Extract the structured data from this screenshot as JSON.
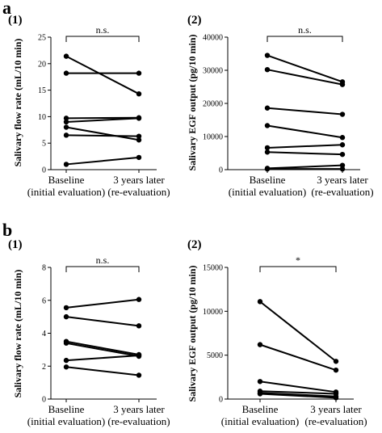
{
  "panels": [
    {
      "label": "a",
      "sub": "(1)",
      "sublabel": "(2)"
    },
    {
      "label": "b",
      "sub": "(1)",
      "sublabel": "(2)"
    }
  ],
  "chart_data": [
    {
      "id": "a1",
      "panel_label": "a",
      "sub_label": "(1)",
      "type": "line",
      "xlabel": "",
      "ylabel": "Salivary flow rate (mL/10 min)",
      "categories": [
        [
          "Baseline",
          "(initial evaluation)"
        ],
        [
          "3 years later",
          "(re-evaluation)"
        ]
      ],
      "ylim": [
        0,
        25
      ],
      "yticks": [
        0,
        5,
        10,
        15,
        20,
        25
      ],
      "annotation": "n.s.",
      "pairs": [
        [
          21.4,
          14.3
        ],
        [
          18.2,
          18.2
        ],
        [
          9.7,
          9.8
        ],
        [
          9.0,
          9.7
        ],
        [
          8.0,
          5.6
        ],
        [
          6.5,
          6.3
        ],
        [
          1.0,
          2.3
        ]
      ]
    },
    {
      "id": "a2",
      "panel_label": "a",
      "sub_label": "(2)",
      "type": "line",
      "xlabel": "",
      "ylabel": "Salivary EGF output (pg/10 min)",
      "categories": [
        [
          "Baseline",
          "(initial evaluation)"
        ],
        [
          "3 years later",
          "(re-evaluation)"
        ]
      ],
      "ylim": [
        0,
        40000
      ],
      "yticks": [
        0,
        10000,
        20000,
        30000,
        40000
      ],
      "annotation": "n.s.",
      "pairs": [
        [
          34500,
          26500
        ],
        [
          30200,
          25700
        ],
        [
          18600,
          16700
        ],
        [
          13300,
          9700
        ],
        [
          6600,
          7500
        ],
        [
          5300,
          4600
        ],
        [
          400,
          1300
        ],
        [
          200,
          200
        ]
      ]
    },
    {
      "id": "b1",
      "panel_label": "b",
      "sub_label": "(1)",
      "type": "line",
      "xlabel": "",
      "ylabel": "Salivary flow rate (mL/10 min)",
      "categories": [
        [
          "Baseline",
          "(initial evaluation)"
        ],
        [
          "3 years later",
          "(re-evaluation)"
        ]
      ],
      "ylim": [
        0,
        8
      ],
      "yticks": [
        0,
        2,
        4,
        6,
        8
      ],
      "annotation": "n.s.",
      "pairs": [
        [
          5.55,
          6.05
        ],
        [
          5.0,
          4.45
        ],
        [
          3.5,
          2.7
        ],
        [
          3.4,
          2.6
        ],
        [
          2.35,
          2.65
        ],
        [
          1.95,
          1.45
        ]
      ]
    },
    {
      "id": "b2",
      "panel_label": "b",
      "sub_label": "(2)",
      "type": "line",
      "xlabel": "",
      "ylabel": "Salivary EGF output (pg/10 min)",
      "categories": [
        [
          "Baseline",
          "(initial evaluation)"
        ],
        [
          "3 years later",
          "(re-evaluation)"
        ]
      ],
      "ylim": [
        0,
        15000
      ],
      "yticks": [
        0,
        5000,
        10000,
        15000
      ],
      "annotation": "*",
      "pairs": [
        [
          11100,
          4300
        ],
        [
          6200,
          3300
        ],
        [
          2000,
          800
        ],
        [
          900,
          600
        ],
        [
          700,
          300
        ],
        [
          600,
          150
        ]
      ]
    }
  ]
}
